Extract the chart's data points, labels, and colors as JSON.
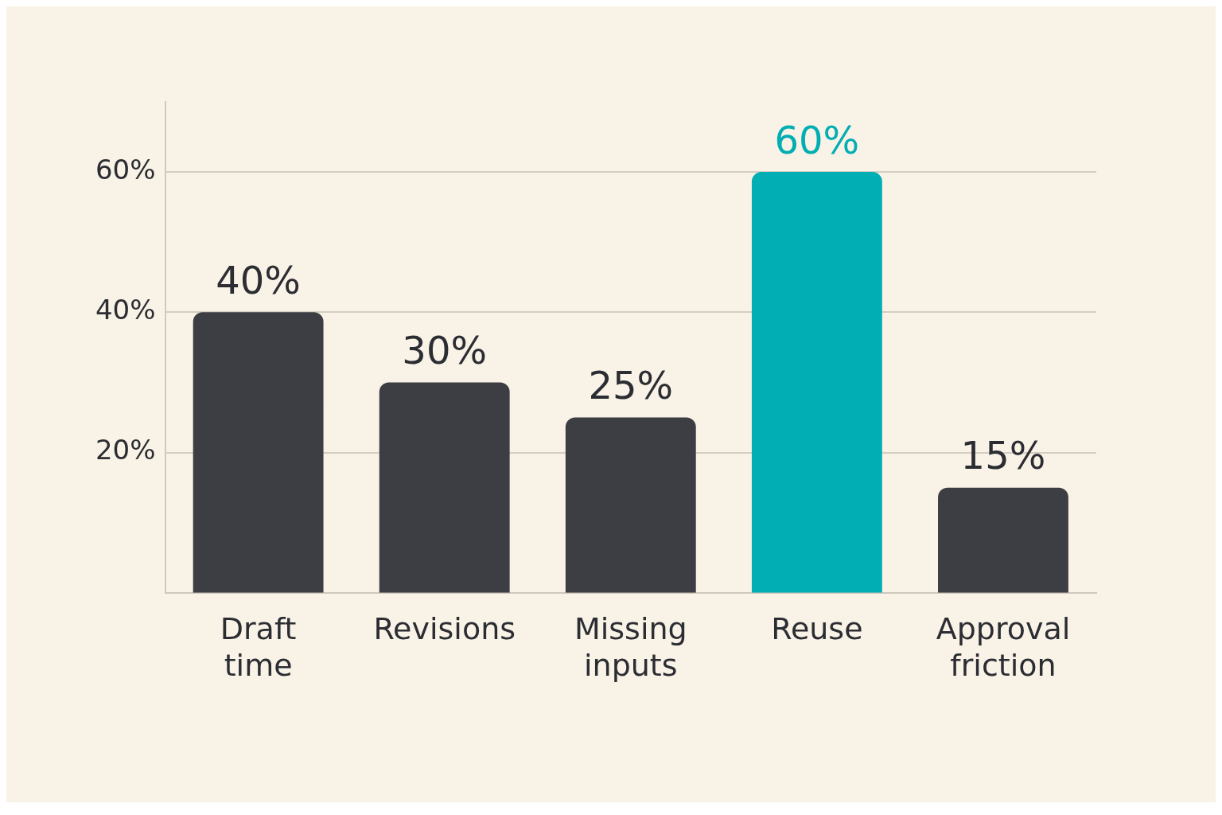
{
  "chart_data": {
    "type": "bar",
    "categories": [
      "Draft time",
      "Revisions",
      "Missing inputs",
      "Reuse",
      "Approval friction"
    ],
    "values": [
      40,
      30,
      25,
      60,
      15
    ],
    "colors": [
      "#3d3e43",
      "#3d3e43",
      "#3d3e43",
      "#00aeb3",
      "#3d3e43"
    ],
    "value_labels": [
      "40%",
      "30%",
      "25%",
      "60%",
      "15%"
    ],
    "ylim": [
      0,
      70
    ],
    "yticks": [
      {
        "value": 20,
        "label": "20%"
      },
      {
        "value": 40,
        "label": "40%"
      },
      {
        "value": 60,
        "label": "60%"
      }
    ],
    "grid": "y"
  }
}
